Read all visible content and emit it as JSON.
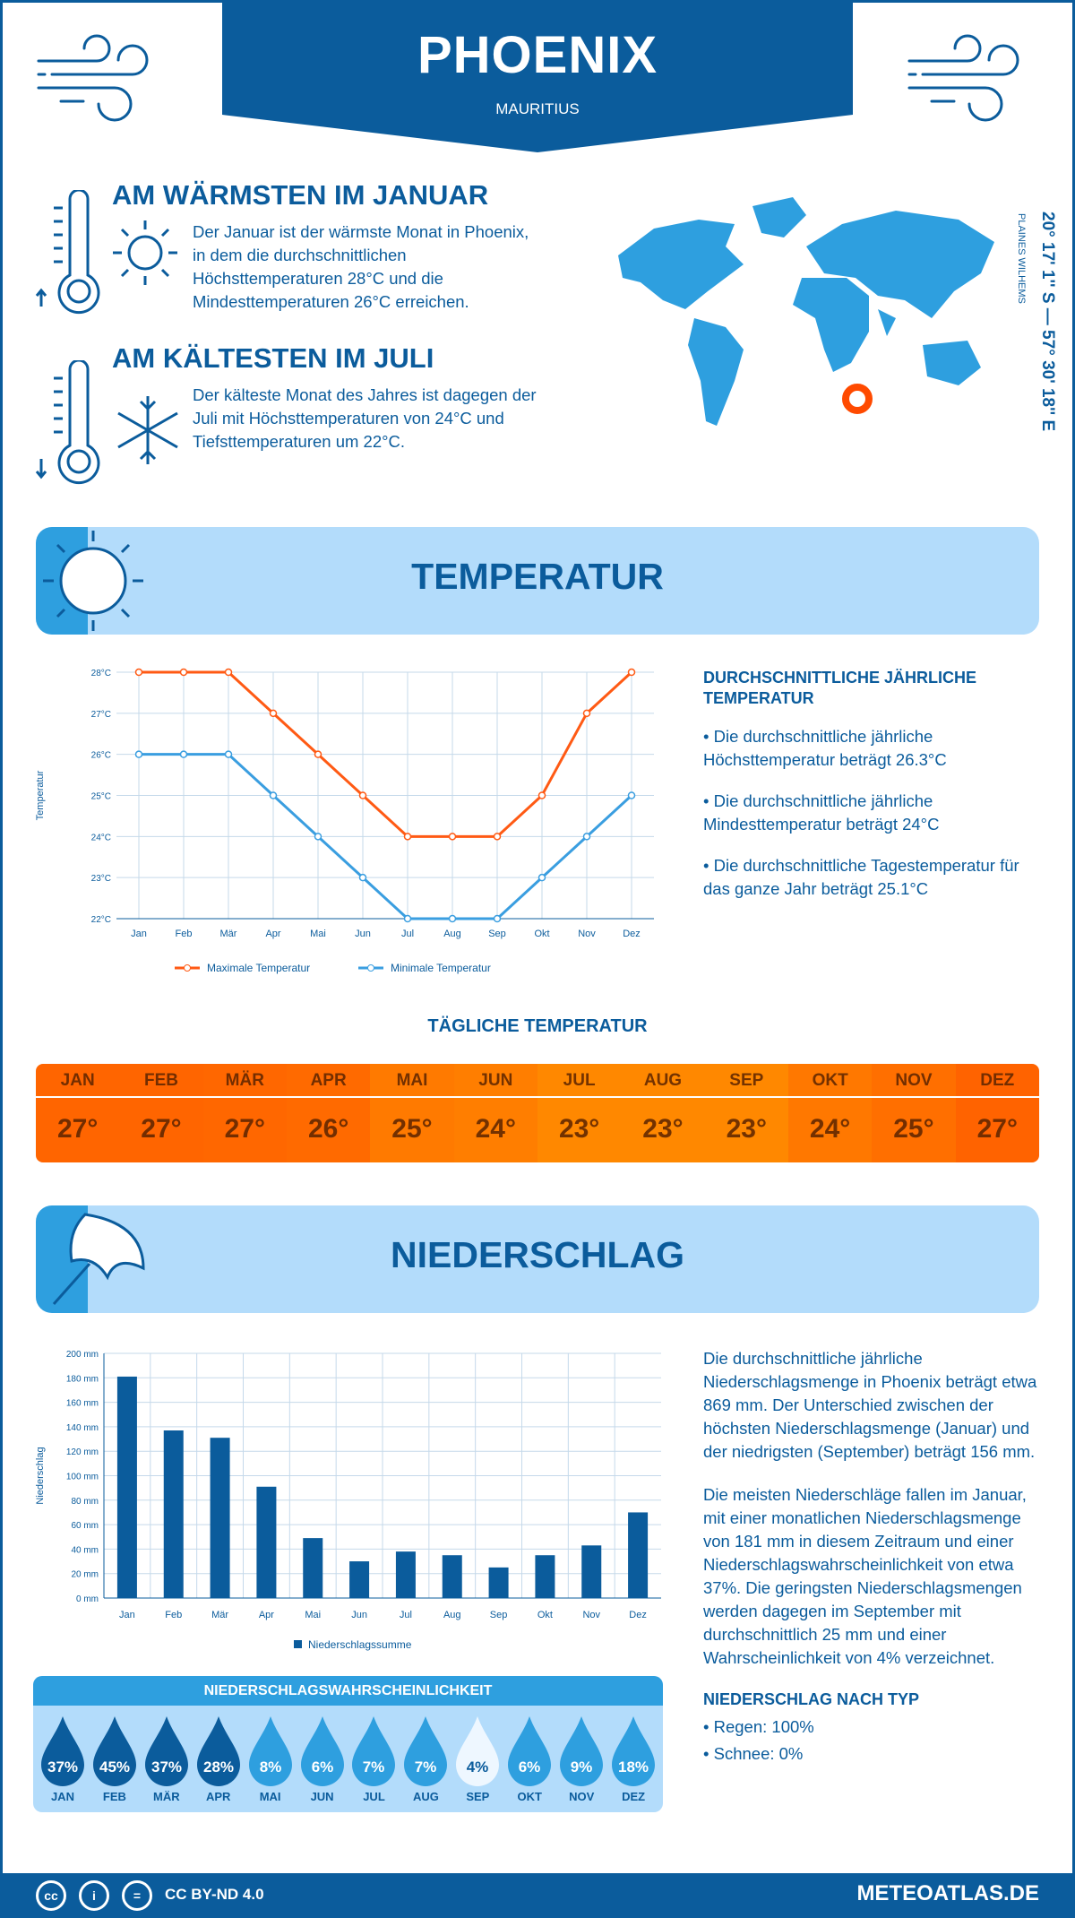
{
  "header": {
    "title": "PHOENIX",
    "subtitle": "MAURITIUS"
  },
  "warmest": {
    "heading": "AM WÄRMSTEN IM JANUAR",
    "text": "Der Januar ist der wärmste Monat in Phoenix, in dem die durchschnittlichen Höchsttemperaturen 28°C und die Mindesttemperaturen 26°C erreichen."
  },
  "coldest": {
    "heading": "AM KÄLTESTEN IM JULI",
    "text": "Der kälteste Monat des Jahres ist dagegen der Juli mit Höchsttemperaturen von 24°C und Tiefsttemperaturen um 22°C."
  },
  "location": {
    "coords": "20° 17' 1'' S — 57° 30' 18'' E",
    "region": "PLAINES WILHEMS"
  },
  "temperature_section": {
    "title": "TEMPERATUR",
    "annual_heading": "DURCHSCHNITTLICHE JÄHRLICHE TEMPERATUR",
    "bullets": [
      "• Die durchschnittliche jährliche Höchsttemperatur beträgt 26.3°C",
      "• Die durchschnittliche jährliche Mindesttemperatur beträgt 24°C",
      "• Die durchschnittliche Tagestemperatur für das ganze Jahr beträgt 25.1°C"
    ]
  },
  "daily": {
    "title": "TÄGLICHE TEMPERATUR",
    "months": [
      "JAN",
      "FEB",
      "MÄR",
      "APR",
      "MAI",
      "JUN",
      "JUL",
      "AUG",
      "SEP",
      "OKT",
      "NOV",
      "DEZ"
    ],
    "values": [
      "27°",
      "27°",
      "27°",
      "26°",
      "25°",
      "24°",
      "23°",
      "23°",
      "23°",
      "24°",
      "25°",
      "27°"
    ],
    "colors": [
      "#ff6500",
      "#ff6500",
      "#ff6700",
      "#ff6a00",
      "#ff7a00",
      "#ff7e00",
      "#ff8800",
      "#ff8800",
      "#ff8800",
      "#ff7800",
      "#ff6f00",
      "#ff6300"
    ]
  },
  "precip_section": {
    "title": "NIEDERSCHLAG",
    "text1": "Die durchschnittliche jährliche Niederschlagsmenge in Phoenix beträgt etwa 869 mm. Der Unterschied zwischen der höchsten Niederschlagsmenge (Januar) und der niedrigsten (September) beträgt 156 mm.",
    "text2": "Die meisten Niederschläge fallen im Januar, mit einer monatlichen Niederschlagsmenge von 181 mm in diesem Zeitraum und einer Niederschlagswahrscheinlichkeit von etwa 37%. Die geringsten Niederschlagsmengen werden dagegen im September mit durchschnittlich 25 mm und einer Wahrscheinlichkeit von 4% verzeichnet.",
    "type_heading": "NIEDERSCHLAG NACH TYP",
    "types": [
      "• Regen: 100%",
      "• Schnee: 0%"
    ]
  },
  "probability": {
    "title": "NIEDERSCHLAGSWAHRSCHEINLICHKEIT",
    "months": [
      "JAN",
      "FEB",
      "MÄR",
      "APR",
      "MAI",
      "JUN",
      "JUL",
      "AUG",
      "SEP",
      "OKT",
      "NOV",
      "DEZ"
    ],
    "values": [
      "37%",
      "45%",
      "37%",
      "28%",
      "8%",
      "6%",
      "7%",
      "7%",
      "4%",
      "6%",
      "9%",
      "18%"
    ],
    "colors": [
      "#0b5c9c",
      "#0b5c9c",
      "#0b5c9c",
      "#0b5c9c",
      "#2e9fdf",
      "#2e9fdf",
      "#2e9fdf",
      "#2e9fdf",
      "#eef7ff",
      "#2e9fdf",
      "#2e9fdf",
      "#2e9fdf"
    ]
  },
  "footer": {
    "license": "CC BY-ND 4.0",
    "site": "METEOATLAS.DE"
  },
  "chart_data": [
    {
      "type": "line",
      "categories": [
        "Jan",
        "Feb",
        "Mär",
        "Apr",
        "Mai",
        "Jun",
        "Jul",
        "Aug",
        "Sep",
        "Okt",
        "Nov",
        "Dez"
      ],
      "ylabel": "Temperatur",
      "ylim": [
        22,
        28
      ],
      "yticks": [
        "22°C",
        "23°C",
        "24°C",
        "25°C",
        "26°C",
        "27°C",
        "28°C"
      ],
      "grid": true,
      "legend": "bottom",
      "series": [
        {
          "name": "Maximale Temperatur",
          "color": "#ff5a14",
          "values": [
            28,
            28,
            28,
            27,
            26,
            25,
            24,
            24,
            24,
            25,
            27,
            28
          ]
        },
        {
          "name": "Minimale Temperatur",
          "color": "#3a9ee0",
          "values": [
            26,
            26,
            26,
            25,
            24,
            23,
            22,
            22,
            22,
            23,
            24,
            25
          ]
        }
      ]
    },
    {
      "type": "bar",
      "categories": [
        "Jan",
        "Feb",
        "Mär",
        "Apr",
        "Mai",
        "Jun",
        "Jul",
        "Aug",
        "Sep",
        "Okt",
        "Nov",
        "Dez"
      ],
      "ylabel": "Niederschlag",
      "ylim": [
        0,
        200
      ],
      "yticks": [
        "0 mm",
        "20 mm",
        "40 mm",
        "60 mm",
        "80 mm",
        "100 mm",
        "120 mm",
        "140 mm",
        "160 mm",
        "180 mm",
        "200 mm"
      ],
      "grid": true,
      "legend": "bottom",
      "series": [
        {
          "name": "Niederschlagssumme",
          "color": "#0b5c9c",
          "values": [
            181,
            137,
            131,
            91,
            49,
            30,
            38,
            35,
            25,
            35,
            43,
            70
          ]
        }
      ]
    }
  ]
}
